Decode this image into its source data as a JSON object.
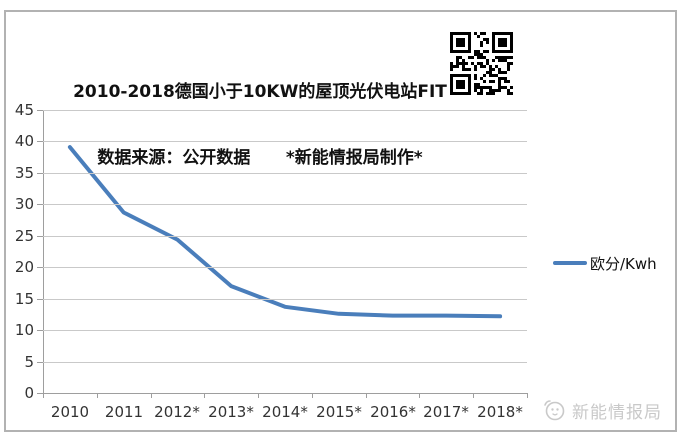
{
  "colors": {
    "line": "#4a7ebb",
    "grid": "#c9c9c9",
    "axis": "#9e9e9e",
    "border": "#b2b2b2",
    "watermark": "#c9c9c9"
  },
  "branding": {
    "watermark": "新能情报局"
  },
  "chart_data": {
    "type": "line",
    "title": "2010-2018德国小于10KW的屋顶光伏电站FIT",
    "subtitle": "数据来源：公开数据      *新能情报局制作*",
    "categories": [
      "2010",
      "2011",
      "2012*",
      "2013*",
      "2014*",
      "2015*",
      "2016*",
      "2017*",
      "2018*"
    ],
    "series": [
      {
        "name": "欧分/Kwh",
        "values": [
          39.1,
          28.7,
          24.4,
          17.0,
          13.7,
          12.6,
          12.3,
          12.3,
          12.2
        ]
      }
    ],
    "xlabel": "",
    "ylabel": "",
    "ylim": [
      0,
      45
    ],
    "ytick_step": 5,
    "grid": true,
    "legend_position": "right"
  }
}
